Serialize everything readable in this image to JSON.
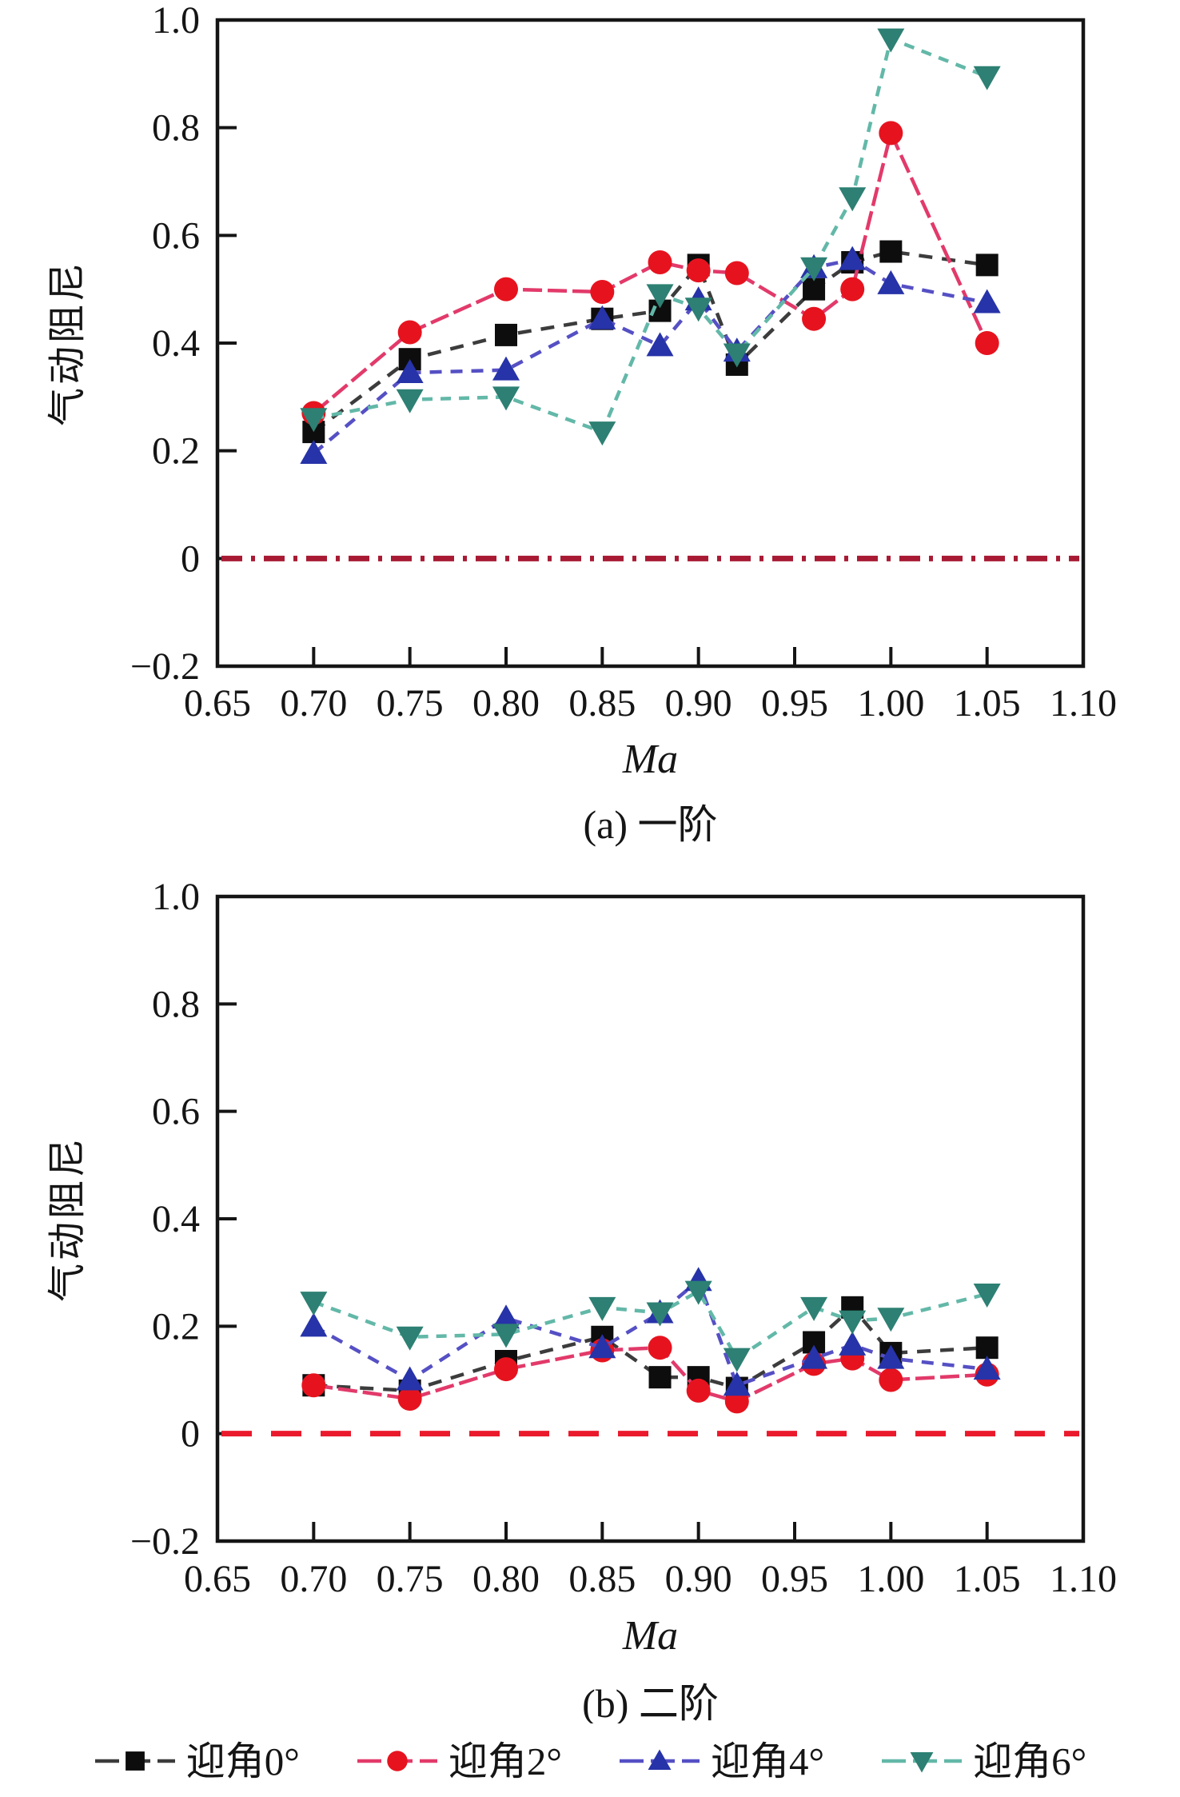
{
  "figure": {
    "background": "#ffffff",
    "frame_color": "#151515",
    "text_color": "#151515"
  },
  "chart_data": [
    {
      "type": "line",
      "title": "(a) 一阶",
      "xlabel": "Ma",
      "ylabel": "气动阻尼",
      "xlim": [
        0.65,
        1.1
      ],
      "ylim": [
        -0.2,
        1.0
      ],
      "xticks": [
        0.65,
        0.7,
        0.75,
        0.8,
        0.85,
        0.9,
        0.95,
        1.0,
        1.05,
        1.1
      ],
      "xtick_labels": [
        "0.65",
        "0.70",
        "0.75",
        "0.80",
        "0.85",
        "0.90",
        "0.95",
        "1.00",
        "1.05",
        "1.10"
      ],
      "yticks": [
        -0.2,
        0,
        0.2,
        0.4,
        0.6,
        0.8,
        1.0
      ],
      "ytick_labels": [
        "−0.2",
        "0",
        "0.2",
        "0.4",
        "0.6",
        "0.8",
        "1.0"
      ],
      "grid": false,
      "zero_line": {
        "value": 0,
        "color": "#a81a33",
        "style": "dash-dot"
      },
      "x": [
        0.7,
        0.75,
        0.8,
        0.85,
        0.88,
        0.9,
        0.92,
        0.96,
        0.98,
        1.0,
        1.05
      ],
      "series": [
        {
          "name": "迎角0°",
          "marker": "square",
          "color": "#0d0d0d",
          "line_color": "#3c3c3c",
          "values": [
            0.235,
            0.37,
            0.415,
            0.445,
            0.46,
            0.545,
            0.36,
            0.5,
            0.55,
            0.57,
            0.545
          ]
        },
        {
          "name": "迎角2°",
          "marker": "circle",
          "color": "#e6131f",
          "line_color": "#e23a6a",
          "values": [
            0.27,
            0.42,
            0.5,
            0.495,
            0.55,
            0.535,
            0.53,
            0.445,
            0.5,
            0.79,
            0.4
          ]
        },
        {
          "name": "迎角4°",
          "marker": "triangle-up",
          "color": "#2733a8",
          "line_color": "#5550c4",
          "values": [
            0.195,
            0.345,
            0.35,
            0.445,
            0.395,
            0.48,
            0.385,
            0.54,
            0.555,
            0.51,
            0.475
          ]
        },
        {
          "name": "迎角6°",
          "marker": "triangle-down",
          "color": "#2d8073",
          "line_color": "#63b8a8",
          "values": [
            0.26,
            0.295,
            0.3,
            0.235,
            0.49,
            0.465,
            0.38,
            0.54,
            0.67,
            0.965,
            0.895
          ]
        }
      ]
    },
    {
      "type": "line",
      "title": "(b) 二阶",
      "xlabel": "Ma",
      "ylabel": "气动阻尼",
      "xlim": [
        0.65,
        1.1
      ],
      "ylim": [
        -0.2,
        1.0
      ],
      "xticks": [
        0.65,
        0.7,
        0.75,
        0.8,
        0.85,
        0.9,
        0.95,
        1.0,
        1.05,
        1.1
      ],
      "xtick_labels": [
        "0.65",
        "0.70",
        "0.75",
        "0.80",
        "0.85",
        "0.90",
        "0.95",
        "1.00",
        "1.05",
        "1.10"
      ],
      "yticks": [
        -0.2,
        0,
        0.2,
        0.4,
        0.6,
        0.8,
        1.0
      ],
      "ytick_labels": [
        "−0.2",
        "0",
        "0.2",
        "0.4",
        "0.6",
        "0.8",
        "1.0"
      ],
      "grid": false,
      "zero_line": {
        "value": 0,
        "color": "#ea1a2c",
        "style": "dashed"
      },
      "x": [
        0.7,
        0.75,
        0.8,
        0.85,
        0.88,
        0.9,
        0.92,
        0.96,
        0.98,
        1.0,
        1.05
      ],
      "series": [
        {
          "name": "迎角0°",
          "marker": "square",
          "color": "#0d0d0d",
          "line_color": "#3c3c3c",
          "values": [
            0.09,
            0.08,
            0.135,
            0.18,
            0.105,
            0.105,
            0.085,
            0.17,
            0.235,
            0.15,
            0.16
          ]
        },
        {
          "name": "迎角2°",
          "marker": "circle",
          "color": "#e6131f",
          "line_color": "#e23a6a",
          "values": [
            0.09,
            0.065,
            0.12,
            0.155,
            0.16,
            0.08,
            0.06,
            0.13,
            0.14,
            0.1,
            0.11
          ]
        },
        {
          "name": "迎角4°",
          "marker": "triangle-up",
          "color": "#2733a8",
          "line_color": "#5550c4",
          "values": [
            0.2,
            0.1,
            0.215,
            0.16,
            0.225,
            0.285,
            0.09,
            0.14,
            0.165,
            0.14,
            0.12
          ]
        },
        {
          "name": "迎角6°",
          "marker": "triangle-down",
          "color": "#2d8073",
          "line_color": "#63b8a8",
          "values": [
            0.245,
            0.18,
            0.185,
            0.235,
            0.225,
            0.265,
            0.14,
            0.235,
            0.21,
            0.215,
            0.26
          ]
        }
      ]
    }
  ],
  "legend": {
    "position": "bottom-center",
    "items": [
      {
        "label": "迎角0°"
      },
      {
        "label": "迎角2°"
      },
      {
        "label": "迎角4°"
      },
      {
        "label": "迎角6°"
      }
    ]
  }
}
